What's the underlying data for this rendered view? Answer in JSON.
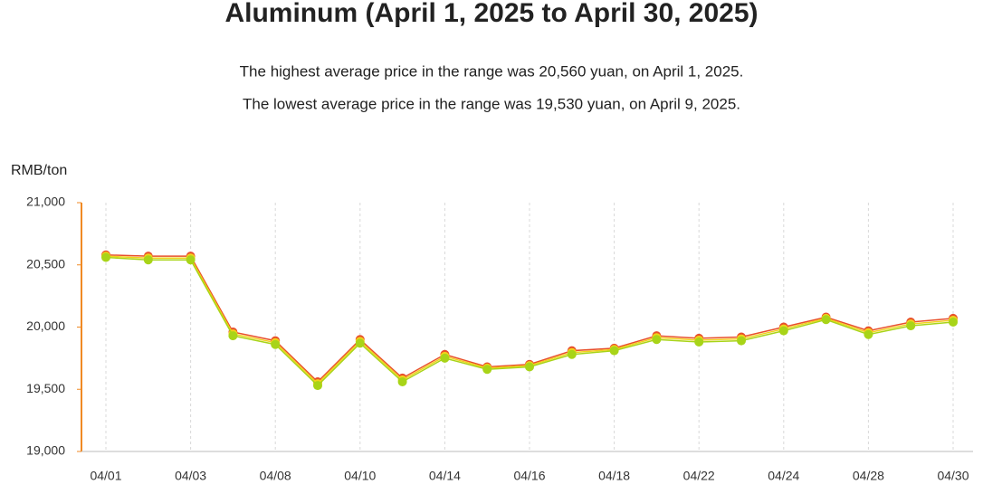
{
  "chart_data": {
    "type": "line",
    "title": "Aluminum (April 1, 2025 to April 30, 2025)",
    "subtitle": [
      "The highest average price in the range was 20,560 yuan, on April 1, 2025.",
      "The lowest average price in the range was 19,530 yuan, on April 9, 2025."
    ],
    "y_label": "RMB/ton",
    "categories": [
      "04/01",
      null,
      "04/03",
      null,
      "04/08",
      null,
      "04/10",
      null,
      "04/14",
      null,
      "04/16",
      null,
      "04/18",
      null,
      "04/22",
      null,
      "04/24",
      null,
      "04/28",
      null,
      "04/30"
    ],
    "series": [
      {
        "color": "#e8502a",
        "values": [
          20580,
          20570,
          20570,
          19960,
          19890,
          19560,
          19900,
          19590,
          19780,
          19680,
          19700,
          19810,
          19830,
          19930,
          19910,
          19920,
          20000,
          20080,
          19970,
          20040,
          20070
        ]
      },
      {
        "color": "#f2d21b",
        "values": [
          20570,
          20555,
          20555,
          19945,
          19875,
          19545,
          19885,
          19575,
          19765,
          19670,
          19690,
          19795,
          19820,
          19915,
          19895,
          19905,
          19985,
          20070,
          19955,
          20025,
          20055
        ]
      },
      {
        "color": "#a8d418",
        "values": [
          20560,
          20540,
          20540,
          19930,
          19860,
          19530,
          19870,
          19560,
          19750,
          19660,
          19680,
          19780,
          19810,
          19900,
          19880,
          19890,
          19970,
          20060,
          19940,
          20010,
          20040
        ]
      }
    ],
    "ylim": [
      19000,
      21000
    ],
    "yticks": [
      {
        "value": 19000,
        "label": "19,000"
      },
      {
        "value": 19500,
        "label": "19,500"
      },
      {
        "value": 20000,
        "label": "20,000"
      },
      {
        "value": 20500,
        "label": "20,500"
      },
      {
        "value": 21000,
        "label": "21,000"
      }
    ],
    "grid": true
  }
}
